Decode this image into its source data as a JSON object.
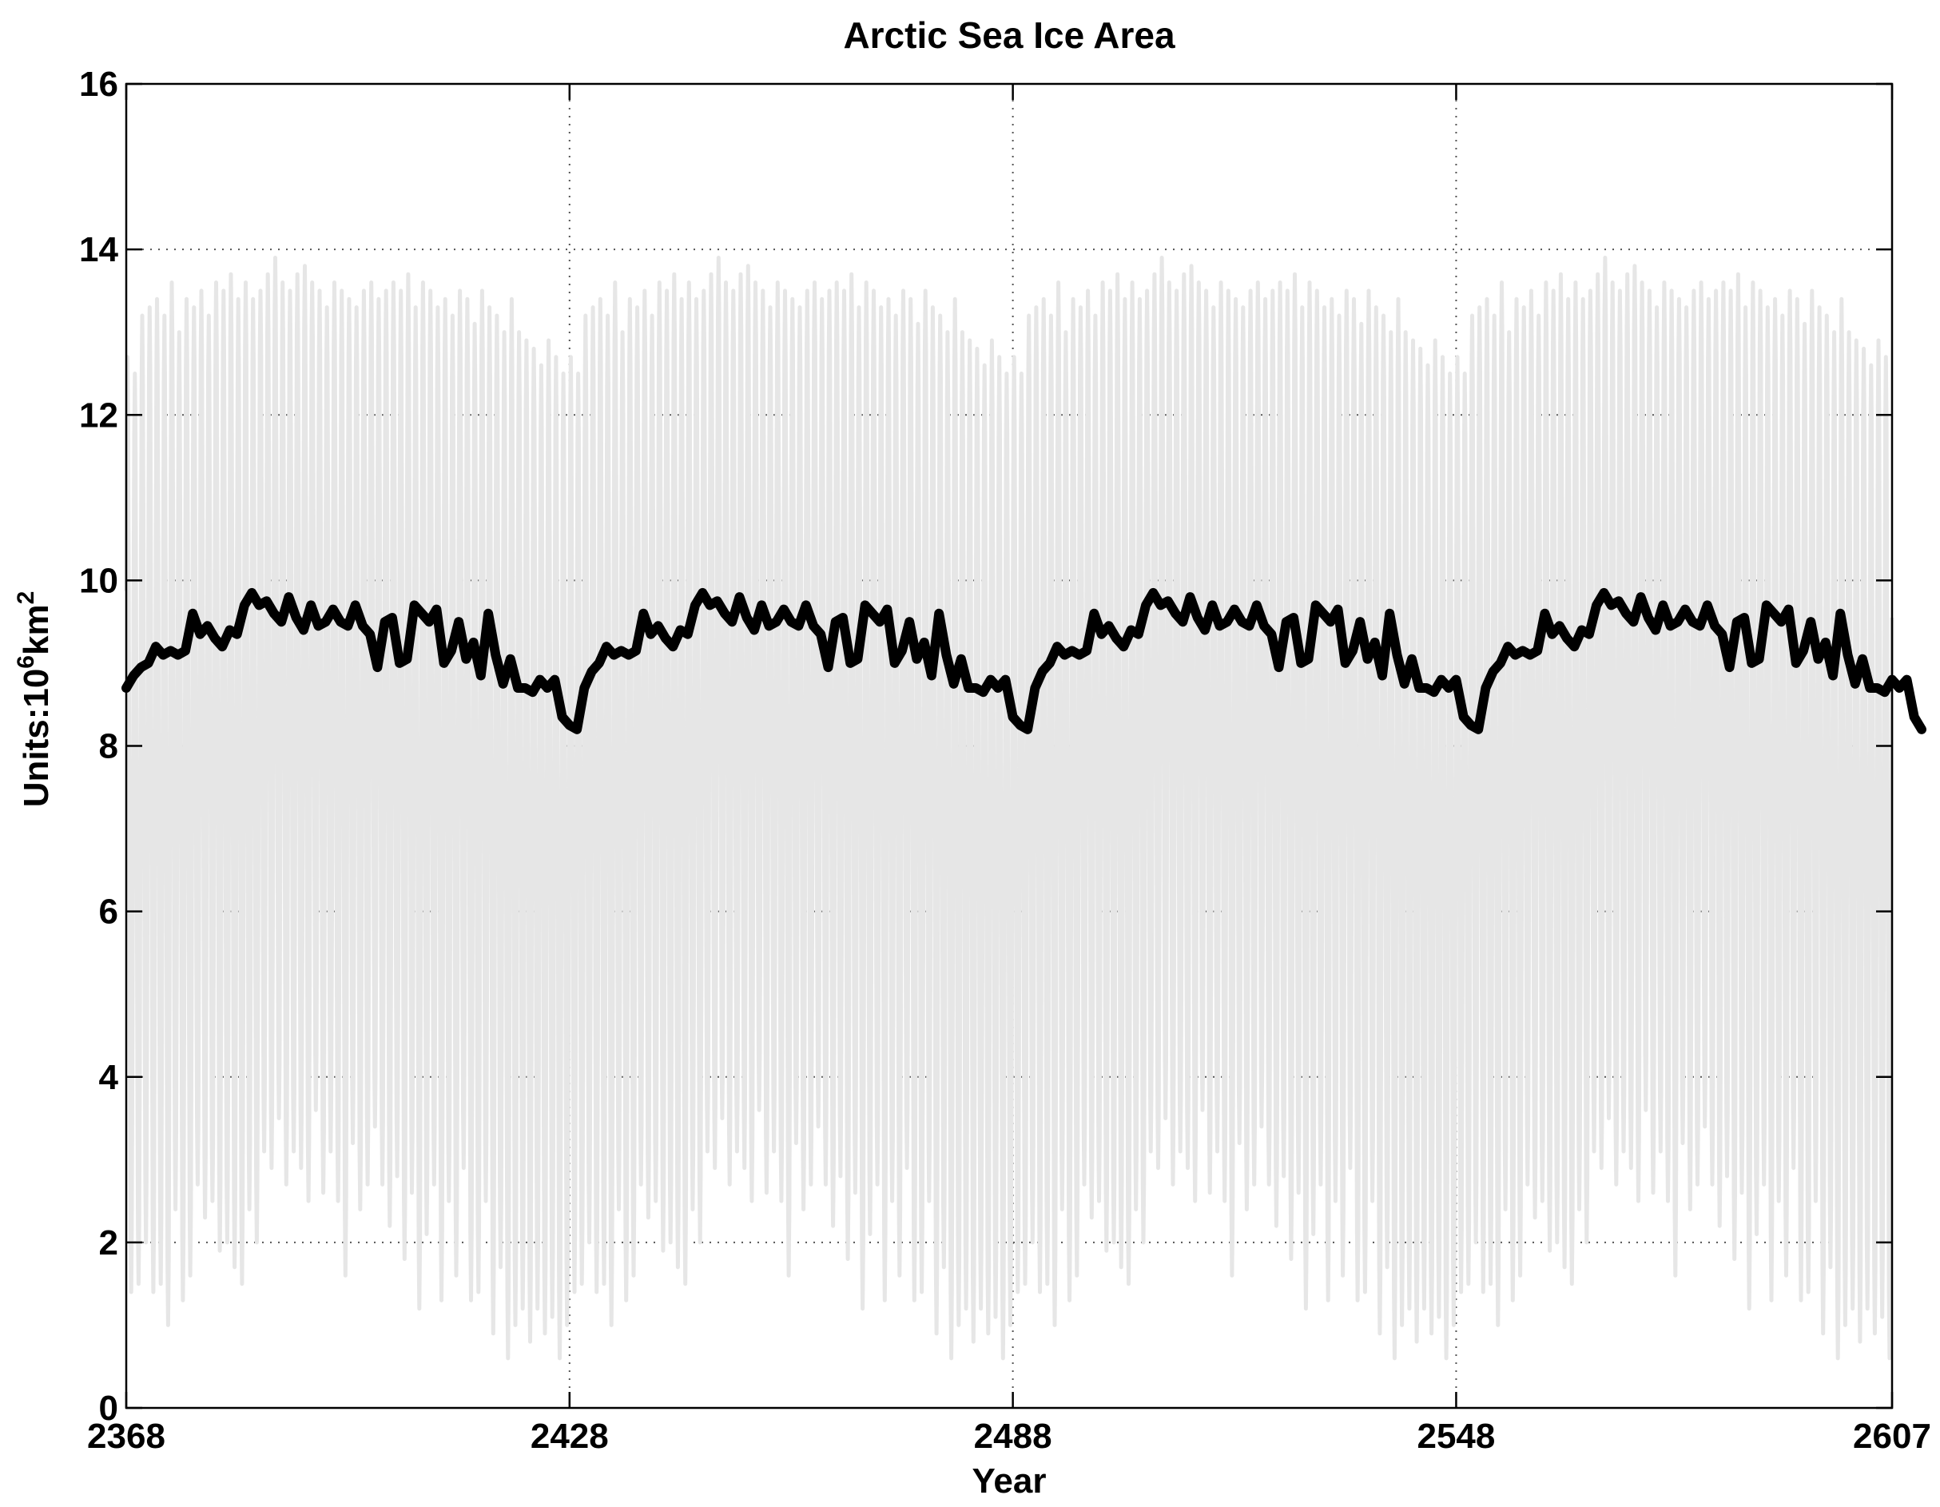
{
  "chart_data": {
    "type": "line",
    "title": "Arctic Sea Ice Area",
    "xlabel": "Year",
    "ylabel": {
      "prefix": "Units:10",
      "exp1": "6",
      "mid": "km",
      "exp2": "2"
    },
    "xlim": [
      2368,
      2607
    ],
    "ylim": [
      0,
      16
    ],
    "xticks": [
      2368,
      2428,
      2488,
      2548,
      2607
    ],
    "yticks": [
      0,
      2,
      4,
      6,
      8,
      10,
      12,
      14,
      16
    ],
    "grid": true,
    "grid_style": "dotted",
    "colors": {
      "monthly": "#e6e6e6",
      "annual": "#000000",
      "axes": "#000000",
      "grid": "#555555"
    },
    "series": [
      {
        "style": "monthly-seasonal-cycle",
        "start_year": 2368,
        "annual_max": [
          12.7,
          12.5,
          13.2,
          13.3,
          13.4,
          13.2,
          13.6,
          13.0,
          13.4,
          13.3,
          13.5,
          13.2,
          13.6,
          13.5,
          13.7,
          13.4,
          13.6,
          13.4,
          13.5,
          13.7,
          13.9,
          13.6,
          13.5,
          13.7,
          13.8,
          13.6,
          13.5,
          13.3,
          13.6,
          13.5,
          13.4,
          13.3,
          13.5,
          13.6,
          13.4,
          13.5,
          13.6,
          13.5,
          13.7,
          13.3,
          13.6,
          13.5,
          13.3,
          13.4,
          13.2,
          13.5,
          13.4,
          13.1,
          13.5,
          13.3,
          13.2,
          13.0,
          13.4,
          13.0,
          12.9,
          12.8,
          12.6,
          12.9,
          12.7,
          12.5,
          12.7,
          12.5,
          13.2,
          13.3,
          13.4,
          13.2,
          13.6,
          13.0,
          13.4,
          13.3,
          13.5,
          13.2,
          13.6,
          13.5,
          13.7,
          13.4,
          13.6,
          13.4,
          13.5,
          13.7,
          13.9,
          13.6,
          13.5,
          13.7,
          13.8,
          13.6,
          13.5,
          13.3,
          13.6,
          13.5,
          13.4,
          13.3,
          13.5,
          13.6,
          13.4,
          13.5,
          13.6,
          13.5,
          13.7,
          13.3,
          13.6,
          13.5,
          13.3,
          13.4,
          13.2,
          13.5,
          13.4,
          13.1,
          13.5,
          13.3,
          13.2,
          13.0,
          13.4,
          13.0,
          12.9,
          12.8,
          12.6,
          12.9,
          12.7,
          12.5,
          12.7,
          12.5,
          13.2,
          13.3,
          13.4,
          13.2,
          13.6,
          13.0,
          13.4,
          13.3,
          13.5,
          13.2,
          13.6,
          13.5,
          13.7,
          13.4,
          13.6,
          13.4,
          13.5,
          13.7,
          13.9,
          13.6,
          13.5,
          13.7,
          13.8,
          13.6,
          13.5,
          13.3,
          13.6,
          13.5,
          13.4,
          13.3,
          13.5,
          13.6,
          13.4,
          13.5,
          13.6,
          13.5,
          13.7,
          13.3,
          13.6,
          13.5,
          13.3,
          13.4,
          13.2,
          13.5,
          13.4,
          13.1,
          13.5,
          13.3,
          13.2,
          13.0,
          13.4,
          13.0,
          12.9,
          12.8,
          12.6,
          12.9,
          12.7,
          12.5,
          12.7,
          12.5,
          13.2,
          13.3,
          13.4,
          13.2,
          13.6,
          13.0,
          13.4,
          13.3,
          13.5,
          13.2,
          13.6,
          13.5,
          13.7,
          13.4,
          13.6,
          13.4,
          13.5,
          13.7,
          13.9,
          13.6,
          13.5,
          13.7,
          13.8,
          13.6,
          13.5,
          13.3,
          13.6,
          13.5,
          13.4,
          13.3,
          13.5,
          13.6,
          13.4,
          13.5,
          13.6,
          13.5,
          13.7,
          13.3,
          13.6,
          13.5,
          13.3,
          13.4,
          13.2,
          13.5,
          13.4,
          13.1,
          13.5,
          13.3,
          13.2,
          13.0,
          13.4,
          13.0,
          12.9,
          12.8,
          12.6,
          12.9,
          12.7,
          12.5,
          12.8
        ],
        "annual_min": [
          1.4,
          1.5,
          2.0,
          1.4,
          1.5,
          1.0,
          2.4,
          1.3,
          1.6,
          2.7,
          2.3,
          2.5,
          1.9,
          2.0,
          1.7,
          1.5,
          2.4,
          2.0,
          3.1,
          2.9,
          3.5,
          2.7,
          3.1,
          2.9,
          2.5,
          3.6,
          2.6,
          3.1,
          2.5,
          1.6,
          3.2,
          2.4,
          2.7,
          3.4,
          2.7,
          2.2,
          2.8,
          1.8,
          2.6,
          1.2,
          2.1,
          2.7,
          1.3,
          2.5,
          1.6,
          2.9,
          1.3,
          1.4,
          2.5,
          0.9,
          1.7,
          0.6,
          1.0,
          1.2,
          0.8,
          1.2,
          0.9,
          1.1,
          0.6,
          1.0,
          1.4,
          1.5,
          2.0,
          1.4,
          1.5,
          1.0,
          2.4,
          1.3,
          1.6,
          2.7,
          2.3,
          2.5,
          1.9,
          2.0,
          1.7,
          1.5,
          2.4,
          2.0,
          3.1,
          2.9,
          3.5,
          2.7,
          3.1,
          2.9,
          2.5,
          3.6,
          2.6,
          3.1,
          2.5,
          1.6,
          3.2,
          2.4,
          2.7,
          3.4,
          2.7,
          2.2,
          2.8,
          1.8,
          2.6,
          1.2,
          2.1,
          2.7,
          1.3,
          2.5,
          1.6,
          2.9,
          1.3,
          1.4,
          2.5,
          0.9,
          1.7,
          0.6,
          1.0,
          1.2,
          0.8,
          1.2,
          0.9,
          1.1,
          0.6,
          1.0,
          1.4,
          1.5,
          2.0,
          1.4,
          1.5,
          1.0,
          2.4,
          1.3,
          1.6,
          2.7,
          2.3,
          2.5,
          1.9,
          2.0,
          1.7,
          1.5,
          2.4,
          2.0,
          3.1,
          2.9,
          3.5,
          2.7,
          3.1,
          2.9,
          2.5,
          3.6,
          2.6,
          3.1,
          2.5,
          1.6,
          3.2,
          2.4,
          2.7,
          3.4,
          2.7,
          2.2,
          2.8,
          1.8,
          2.6,
          1.2,
          2.1,
          2.7,
          1.3,
          2.5,
          1.6,
          2.9,
          1.3,
          1.4,
          2.5,
          0.9,
          1.7,
          0.6,
          1.0,
          1.2,
          0.8,
          1.2,
          0.9,
          1.1,
          0.6,
          1.0,
          1.4,
          1.5,
          2.0,
          1.4,
          1.5,
          1.0,
          2.4,
          1.3,
          1.6,
          2.7,
          2.3,
          2.5,
          1.9,
          2.0,
          1.7,
          1.5,
          2.4,
          2.0,
          3.1,
          2.9,
          3.5,
          2.7,
          3.1,
          2.9,
          2.5,
          3.6,
          2.6,
          3.1,
          2.5,
          1.6,
          3.2,
          2.4,
          2.7,
          3.4,
          2.7,
          2.2,
          2.8,
          1.8,
          2.6,
          1.2,
          2.1,
          2.7,
          1.3,
          2.5,
          1.6,
          2.9,
          1.3,
          1.4,
          2.5,
          0.9,
          1.7,
          0.6,
          1.0,
          1.2,
          0.8,
          1.2,
          0.9,
          1.1,
          0.6,
          0.7
        ]
      },
      {
        "style": "annual-mean",
        "start_year": 2368,
        "values": [
          8.7,
          8.85,
          8.95,
          9.0,
          9.2,
          9.1,
          9.15,
          9.1,
          9.15,
          9.6,
          9.35,
          9.45,
          9.3,
          9.2,
          9.4,
          9.35,
          9.7,
          9.85,
          9.7,
          9.75,
          9.6,
          9.5,
          9.8,
          9.55,
          9.4,
          9.7,
          9.45,
          9.5,
          9.65,
          9.5,
          9.45,
          9.7,
          9.45,
          9.35,
          8.95,
          9.5,
          9.55,
          9.0,
          9.05,
          9.7,
          9.6,
          9.5,
          9.65,
          9.0,
          9.15,
          9.5,
          9.05,
          9.25,
          8.85,
          9.6,
          9.1,
          8.75,
          9.05,
          8.7,
          8.7,
          8.65,
          8.8,
          8.7,
          8.8,
          8.35,
          8.25,
          8.2,
          8.7,
          8.9,
          9.0,
          9.2,
          9.1,
          9.15,
          9.1,
          9.15,
          9.6,
          9.35,
          9.45,
          9.3,
          9.2,
          9.4,
          9.35,
          9.7,
          9.85,
          9.7,
          9.75,
          9.6,
          9.5,
          9.8,
          9.55,
          9.4,
          9.7,
          9.45,
          9.5,
          9.65,
          9.5,
          9.45,
          9.7,
          9.45,
          9.35,
          8.95,
          9.5,
          9.55,
          9.0,
          9.05,
          9.7,
          9.6,
          9.5,
          9.65,
          9.0,
          9.15,
          9.5,
          9.05,
          9.25,
          8.85,
          9.6,
          9.1,
          8.75,
          9.05,
          8.7,
          8.7,
          8.65,
          8.8,
          8.7,
          8.8,
          8.35,
          8.25,
          8.2,
          8.7,
          8.9,
          9.0,
          9.2,
          9.1,
          9.15,
          9.1,
          9.15,
          9.6,
          9.35,
          9.45,
          9.3,
          9.2,
          9.4,
          9.35,
          9.7,
          9.85,
          9.7,
          9.75,
          9.6,
          9.5,
          9.8,
          9.55,
          9.4,
          9.7,
          9.45,
          9.5,
          9.65,
          9.5,
          9.45,
          9.7,
          9.45,
          9.35,
          8.95,
          9.5,
          9.55,
          9.0,
          9.05,
          9.7,
          9.6,
          9.5,
          9.65,
          9.0,
          9.15,
          9.5,
          9.05,
          9.25,
          8.85,
          9.6,
          9.1,
          8.75,
          9.05,
          8.7,
          8.7,
          8.65,
          8.8,
          8.7,
          8.8,
          8.35,
          8.25,
          8.2,
          8.7,
          8.9,
          9.0,
          9.2,
          9.1,
          9.15,
          9.1,
          9.15,
          9.6,
          9.35,
          9.45,
          9.3,
          9.2,
          9.4,
          9.35,
          9.7,
          9.85,
          9.7,
          9.75,
          9.6,
          9.5,
          9.8,
          9.55,
          9.4,
          9.7,
          9.45,
          9.5,
          9.65,
          9.5,
          9.45,
          9.7,
          9.45,
          9.35,
          8.95,
          9.5,
          9.55,
          9.0,
          9.05,
          9.7,
          9.6,
          9.5,
          9.65,
          9.0,
          9.15,
          9.5,
          9.05,
          9.25,
          8.85,
          9.6,
          9.1,
          8.75,
          9.05,
          8.7,
          8.7,
          8.65,
          8.8,
          8.7,
          8.8,
          8.35,
          8.2
        ]
      }
    ]
  }
}
